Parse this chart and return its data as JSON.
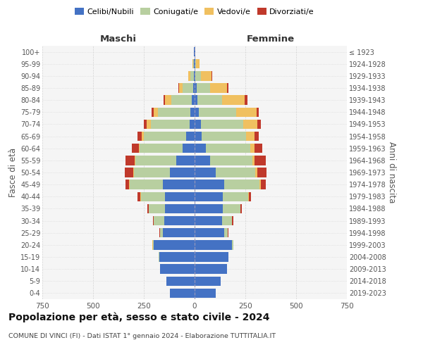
{
  "age_groups": [
    "0-4",
    "5-9",
    "10-14",
    "15-19",
    "20-24",
    "25-29",
    "30-34",
    "35-39",
    "40-44",
    "45-49",
    "50-54",
    "55-59",
    "60-64",
    "65-69",
    "70-74",
    "75-79",
    "80-84",
    "85-89",
    "90-94",
    "95-99",
    "100+"
  ],
  "birth_years": [
    "2019-2023",
    "2014-2018",
    "2009-2013",
    "2004-2008",
    "1999-2003",
    "1994-1998",
    "1989-1993",
    "1984-1988",
    "1979-1983",
    "1974-1978",
    "1969-1973",
    "1964-1968",
    "1959-1963",
    "1954-1958",
    "1949-1953",
    "1944-1948",
    "1939-1943",
    "1934-1938",
    "1929-1933",
    "1924-1928",
    "≤ 1923"
  ],
  "maschi": {
    "celibi": [
      120,
      140,
      170,
      175,
      200,
      155,
      150,
      145,
      145,
      155,
      120,
      90,
      60,
      40,
      25,
      20,
      15,
      8,
      5,
      3,
      2
    ],
    "coniugati": [
      0,
      0,
      0,
      2,
      5,
      15,
      50,
      80,
      120,
      165,
      180,
      200,
      210,
      210,
      190,
      160,
      100,
      50,
      15,
      5,
      1
    ],
    "vedovi": [
      0,
      0,
      0,
      0,
      2,
      0,
      0,
      0,
      1,
      2,
      3,
      5,
      5,
      10,
      20,
      20,
      30,
      20,
      10,
      2,
      0
    ],
    "divorziati": [
      0,
      0,
      0,
      0,
      0,
      2,
      5,
      8,
      15,
      20,
      40,
      45,
      35,
      20,
      15,
      12,
      8,
      2,
      0,
      0,
      0
    ]
  },
  "femmine": {
    "nubili": [
      105,
      130,
      160,
      165,
      185,
      145,
      135,
      140,
      140,
      145,
      105,
      75,
      55,
      35,
      30,
      20,
      15,
      10,
      5,
      3,
      2
    ],
    "coniugate": [
      0,
      0,
      0,
      2,
      5,
      18,
      50,
      85,
      125,
      175,
      195,
      210,
      220,
      220,
      210,
      185,
      120,
      65,
      25,
      5,
      1
    ],
    "vedove": [
      0,
      0,
      0,
      0,
      0,
      0,
      0,
      2,
      2,
      5,
      8,
      10,
      20,
      40,
      70,
      100,
      110,
      85,
      55,
      15,
      1
    ],
    "divorziate": [
      0,
      0,
      0,
      0,
      0,
      2,
      5,
      5,
      10,
      25,
      45,
      55,
      40,
      20,
      15,
      10,
      15,
      5,
      2,
      0,
      0
    ]
  },
  "colors": {
    "celibi": "#4472c4",
    "coniugati": "#b8cfa0",
    "vedovi": "#f0c060",
    "divorziati": "#c0392b"
  },
  "legend_labels": [
    "Celibi/Nubili",
    "Coniugati/e",
    "Vedovi/e",
    "Divorziati/e"
  ],
  "title": "Popolazione per età, sesso e stato civile - 2024",
  "subtitle": "COMUNE DI VINCI (FI) - Dati ISTAT 1° gennaio 2024 - Elaborazione TUTTITALIA.IT",
  "xlabel_maschi": "Maschi",
  "xlabel_femmine": "Femmine",
  "ylabel_left": "Fasce di età",
  "ylabel_right": "Anni di nascita",
  "xlim": 750,
  "bg_color": "#f5f5f5",
  "grid_color": "#cccccc"
}
